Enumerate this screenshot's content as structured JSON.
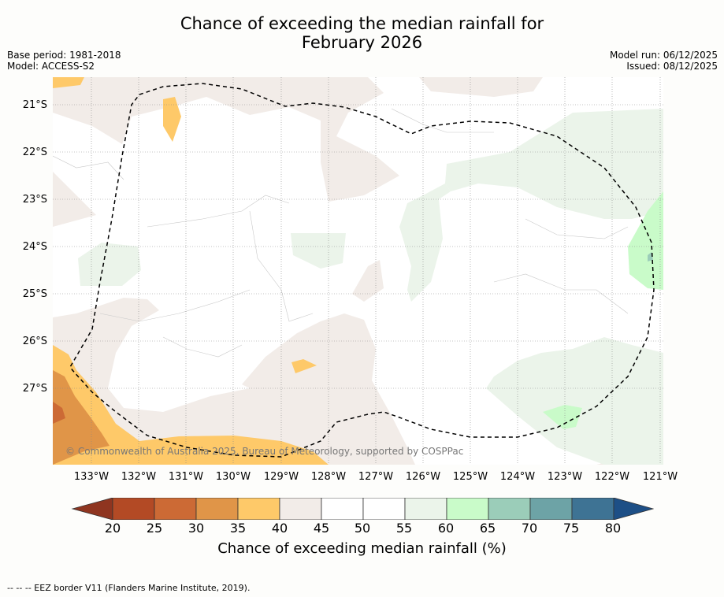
{
  "title": {
    "line1": "Chance of exceeding the median rainfall for",
    "line2": "February 2026"
  },
  "meta": {
    "base_period": "Base period: 1981-2018",
    "model": "Model: ACCESS-S2",
    "model_run": "Model run: 06/12/2025",
    "issued": "Issued: 08/12/2025"
  },
  "map": {
    "latitude_labels": [
      "21°S",
      "22°S",
      "23°S",
      "24°S",
      "25°S",
      "26°S",
      "27°S"
    ],
    "longitude_labels": [
      "133°W",
      "132°W",
      "131°W",
      "130°W",
      "129°W",
      "128°W",
      "127°W",
      "126°W",
      "125°W",
      "124°W",
      "123°W",
      "122°W",
      "121°W"
    ],
    "credit": "© Commonwealth of Australia 2025, Bureau of Meteorology, supported by COSPPac"
  },
  "colorbar": {
    "label": "Chance of exceeding median rainfall (%)",
    "ticks": [
      "20",
      "25",
      "30",
      "35",
      "40",
      "45",
      "50",
      "55",
      "60",
      "65",
      "70",
      "75",
      "80"
    ],
    "colors": [
      "#8f3520",
      "#b34a25",
      "#cc6a35",
      "#e09548",
      "#fec969",
      "#f2ece8",
      "#ffffff",
      "#ffffff",
      "#ebf4ea",
      "#c9fbc9",
      "#9bcdb9",
      "#6da3a6",
      "#3e7394",
      "#1d4f86"
    ]
  },
  "footer": "--  --  -- EEZ border V11 (Flanders Marine Institute, 2019)."
}
